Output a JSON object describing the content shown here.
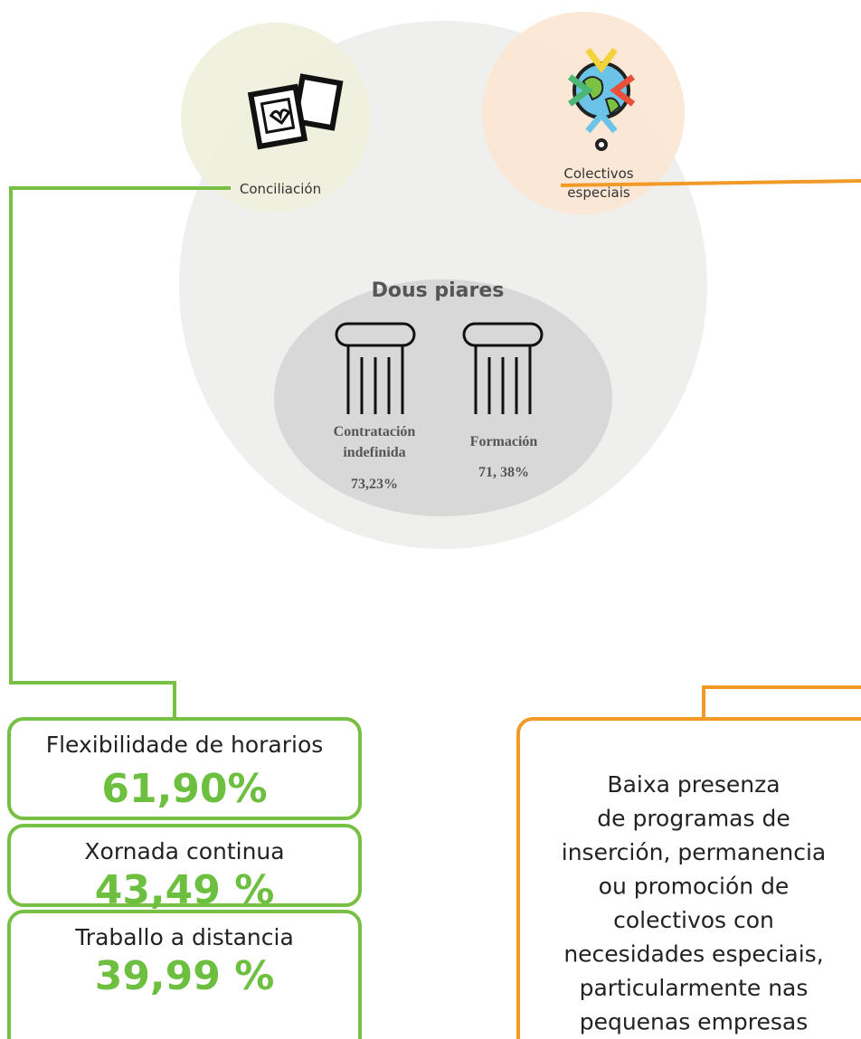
{
  "title": "Dous piares",
  "circles": {
    "conciliacion": "Conciliación",
    "colectivos": [
      "Colectivos",
      "especiais"
    ]
  },
  "pillars": [
    {
      "label": [
        "Contratación",
        "indefinida"
      ],
      "value": "73,23%"
    },
    {
      "label": [
        "Formación"
      ],
      "value": "71, 38%"
    }
  ],
  "conciliacion_items": [
    {
      "label": "Flexibilidade de horarios",
      "value": "61,90%"
    },
    {
      "label": "Xornada continua",
      "value": "43,49 %"
    },
    {
      "label": "Traballo a distancia",
      "value": "39,99 %"
    }
  ],
  "colectivos_box": {
    "lines": [
      "Baixa presenza",
      "de programas de",
      "inserción, permanencia",
      "ou promoción de",
      "colectivos con",
      "necesidades especiais,",
      "particularmente nas",
      "pequenas empresas"
    ]
  }
}
